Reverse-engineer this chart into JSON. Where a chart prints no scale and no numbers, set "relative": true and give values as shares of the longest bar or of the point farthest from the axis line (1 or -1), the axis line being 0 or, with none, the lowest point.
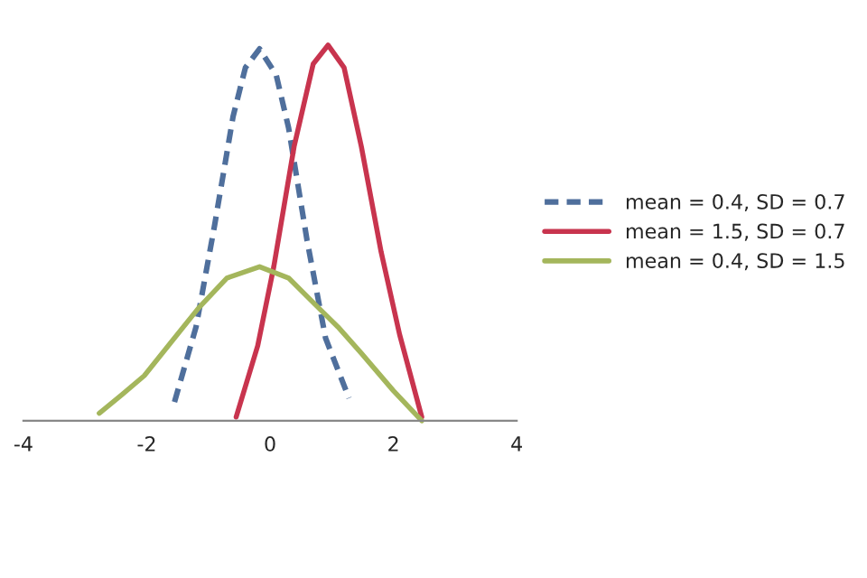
{
  "chart_data": {
    "type": "line",
    "relative": true,
    "xlim": [
      -4,
      4
    ],
    "xticks": [
      -4,
      -2,
      0,
      2,
      4
    ],
    "legend": "right",
    "grid": false,
    "tick_labels": "x",
    "series": [
      {
        "name": "mean = 0.4, SD = 0.7",
        "color": "#4f6f9c",
        "line_style": "dashed",
        "x": [
          -1.55,
          -1.2,
          -0.9,
          -0.6,
          -0.4,
          -0.17,
          0.1,
          0.3,
          0.6,
          0.9,
          1.28
        ],
        "values": [
          0.05,
          0.25,
          0.52,
          0.81,
          0.94,
          0.99,
          0.92,
          0.78,
          0.48,
          0.22,
          0.06
        ]
      },
      {
        "name": "mean = 1.5, SD = 0.7",
        "color": "#c8344e",
        "line_style": "solid",
        "x": [
          -0.55,
          -0.2,
          0.06,
          0.39,
          0.7,
          0.94,
          1.2,
          1.48,
          1.8,
          2.1,
          2.46
        ],
        "values": [
          0.01,
          0.2,
          0.41,
          0.73,
          0.95,
          1.0,
          0.94,
          0.73,
          0.45,
          0.23,
          0.01
        ]
      },
      {
        "name": "mean = 0.4, SD = 1.5",
        "color": "#a4b65c",
        "line_style": "solid",
        "x": [
          -2.77,
          -2.4,
          -2.04,
          -1.6,
          -1.16,
          -0.7,
          -0.17,
          0.3,
          0.79,
          1.1,
          1.48,
          2.0,
          2.46
        ],
        "values": [
          0.02,
          0.07,
          0.12,
          0.21,
          0.3,
          0.38,
          0.41,
          0.38,
          0.3,
          0.25,
          0.18,
          0.08,
          0.0
        ]
      }
    ]
  }
}
